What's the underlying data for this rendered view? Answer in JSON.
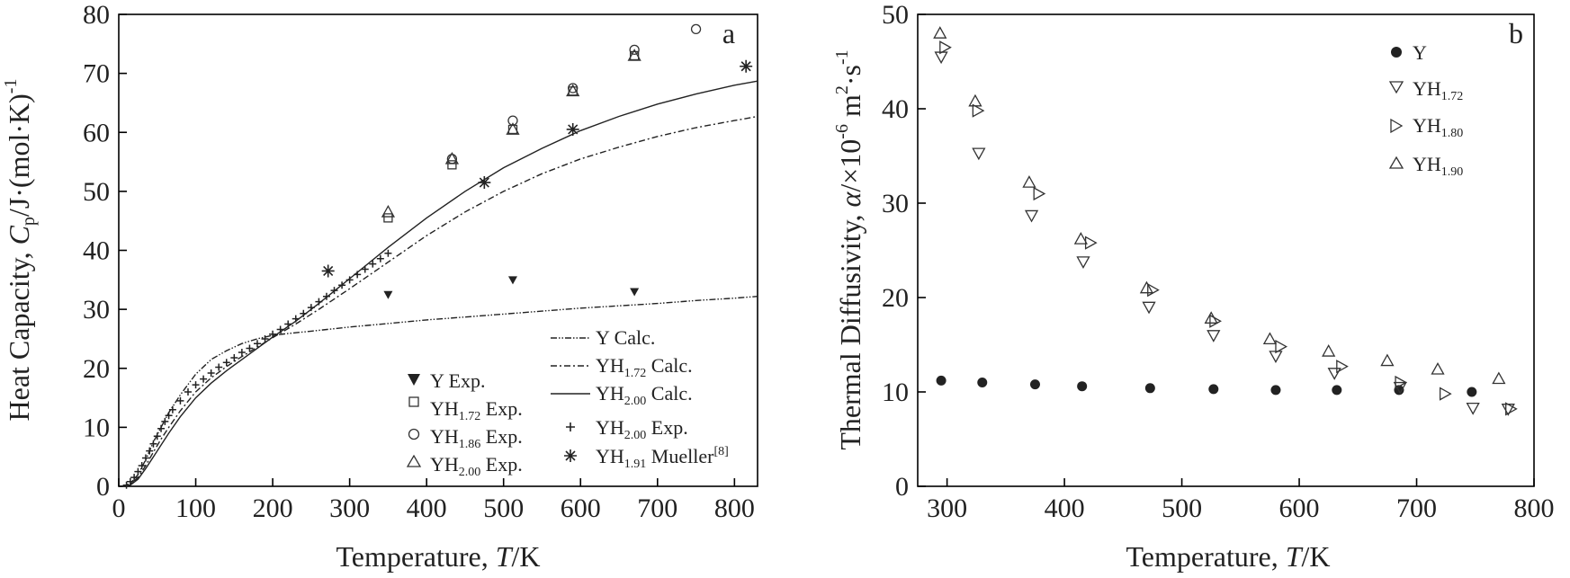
{
  "chart_data": [
    {
      "type": "scatter",
      "panel_label": "a",
      "xlabel_prefix": "Temperature, ",
      "xlabel_var": "T",
      "xlabel_suffix": "/K",
      "ylabel_prefix": "Heat Capacity, ",
      "ylabel_var": "C",
      "ylabel_var_sub": "p",
      "ylabel_suffix": "/J·(mol·K)",
      "ylabel_sup": "-1",
      "xlim": [
        0,
        830
      ],
      "ylim": [
        0,
        80
      ],
      "xticks": [
        0,
        100,
        200,
        300,
        400,
        500,
        600,
        700,
        800
      ],
      "yticks": [
        0,
        10,
        20,
        30,
        40,
        50,
        60,
        70,
        80
      ],
      "curves": [
        {
          "name": "Y Calc.",
          "label": "Y Calc.",
          "style": "dash-dot-dot",
          "x": [
            5,
            15,
            25,
            35,
            45,
            55,
            65,
            80,
            100,
            120,
            140,
            160,
            180,
            200,
            220,
            250,
            300,
            350,
            400,
            450,
            500,
            550,
            600,
            650,
            700,
            750,
            800,
            830
          ],
          "y": [
            0,
            0.5,
            2,
            4.5,
            7.5,
            10,
            12.5,
            15.5,
            19,
            21.5,
            23,
            24.2,
            25,
            25.6,
            25.9,
            26.3,
            27,
            27.6,
            28.2,
            28.7,
            29.2,
            29.7,
            30.2,
            30.6,
            31.0,
            31.5,
            31.9,
            32.2
          ]
        },
        {
          "name": "YH1.72 Calc.",
          "label_main": "YH",
          "label_sub": "1.72",
          "label_tail": " Calc.",
          "style": "dash-dot",
          "x": [
            5,
            15,
            25,
            35,
            45,
            55,
            65,
            80,
            100,
            120,
            140,
            160,
            180,
            200,
            230,
            260,
            300,
            350,
            400,
            450,
            500,
            550,
            600,
            650,
            700,
            750,
            800,
            830
          ],
          "y": [
            0,
            0.3,
            1.5,
            3.5,
            5.8,
            8,
            10,
            12.8,
            16,
            18.4,
            20.3,
            22,
            23.6,
            25.2,
            27.5,
            30,
            33.5,
            38,
            42.5,
            46.5,
            50,
            53,
            55.5,
            57.5,
            59.3,
            60.8,
            62,
            62.7
          ]
        },
        {
          "name": "YH2.00 Calc.",
          "label_main": "YH",
          "label_sub": "2.00",
          "label_tail": " Calc.",
          "style": "solid",
          "x": [
            5,
            15,
            25,
            35,
            45,
            55,
            65,
            80,
            100,
            120,
            140,
            160,
            180,
            200,
            230,
            260,
            300,
            350,
            400,
            450,
            500,
            550,
            600,
            650,
            700,
            750,
            800,
            830
          ],
          "y": [
            0,
            0.2,
            1.2,
            3,
            5,
            7,
            9,
            11.8,
            15,
            17.5,
            19.6,
            21.5,
            23.4,
            25.3,
            28,
            31,
            35.2,
            40.5,
            45.5,
            50,
            54,
            57.3,
            60.3,
            62.7,
            64.8,
            66.5,
            68,
            68.7
          ]
        }
      ],
      "markers": [
        {
          "name": "Y Exp.",
          "label": "Y Exp.",
          "marker": "filled-triangle-down",
          "x": [
            350,
            512,
            670
          ],
          "y": [
            32.5,
            35,
            33
          ]
        },
        {
          "name": "YH1.72 Exp.",
          "label_main": "YH",
          "label_sub": "1.72",
          "label_tail": " Exp.",
          "marker": "square",
          "x": [
            350,
            433,
            512,
            590,
            670
          ],
          "y": [
            45.5,
            54.5,
            60.5,
            67,
            73
          ]
        },
        {
          "name": "YH1.86 Exp.",
          "label_main": "YH",
          "label_sub": "1.86",
          "label_tail": " Exp.",
          "marker": "circle",
          "x": [
            433,
            512,
            590,
            670,
            750
          ],
          "y": [
            55.5,
            62,
            67.5,
            74,
            77.5
          ]
        },
        {
          "name": "YH2.00 Exp.",
          "label_main": "YH",
          "label_sub": "2.00",
          "label_tail": " Exp.",
          "marker": "triangle-up",
          "x": [
            350,
            433,
            512,
            590,
            670
          ],
          "y": [
            46.5,
            55.5,
            60.5,
            67,
            73
          ]
        },
        {
          "name": "YH2.00 Exp. (+)",
          "label_main": "YH",
          "label_sub": "2.00",
          "label_tail": " Exp.",
          "marker": "plus",
          "x": [
            10,
            15,
            20,
            25,
            30,
            35,
            40,
            45,
            50,
            55,
            60,
            65,
            70,
            80,
            90,
            100,
            110,
            120,
            130,
            140,
            150,
            160,
            170,
            180,
            190,
            200,
            210,
            220,
            230,
            240,
            250,
            260,
            270,
            280,
            290,
            300,
            310,
            320,
            330,
            340,
            350
          ],
          "y": [
            0.2,
            0.8,
            1.5,
            2.5,
            3.5,
            4.8,
            6,
            7.2,
            8.5,
            9.8,
            11,
            12,
            13,
            14.5,
            16,
            17.2,
            18.2,
            19.2,
            20.2,
            21,
            21.8,
            22.7,
            23.4,
            24.2,
            25,
            25.8,
            26.6,
            27.5,
            28.4,
            29.3,
            30.3,
            31.3,
            32.2,
            33.2,
            34.1,
            35,
            35.9,
            36.8,
            37.7,
            38.6,
            39.5
          ]
        },
        {
          "name": "YH1.91 Mueller[8]",
          "label_main": "YH",
          "label_sub": "1.91",
          "label_tail": " Mueller",
          "label_sup": "[8]",
          "marker": "asterisk",
          "x": [
            272,
            475,
            590,
            815
          ],
          "y": [
            36.5,
            51.5,
            60.5,
            71.2
          ]
        }
      ],
      "legend_position": "lower-right"
    },
    {
      "type": "scatter",
      "panel_label": "b",
      "xlabel_prefix": "Temperature, ",
      "xlabel_var": "T",
      "xlabel_suffix": "/K",
      "ylabel_prefix": "Thermal Diffusivity, ",
      "ylabel_var": "α",
      "ylabel_mid": "/×10",
      "ylabel_sup1": "-6",
      "ylabel_unit1": " m",
      "ylabel_sup2": "2",
      "ylabel_unit2": "·s",
      "ylabel_sup3": "-1",
      "xlim": [
        275,
        800
      ],
      "ylim": [
        0,
        50
      ],
      "xticks": [
        300,
        400,
        500,
        600,
        700,
        800
      ],
      "yticks": [
        0,
        10,
        20,
        30,
        40,
        50
      ],
      "markers": [
        {
          "name": "Y",
          "label": "Y",
          "marker": "filled-circle",
          "x": [
            295,
            330,
            375,
            415,
            473,
            527,
            580,
            632,
            685,
            747
          ],
          "y": [
            11.2,
            11,
            10.8,
            10.6,
            10.4,
            10.3,
            10.2,
            10.2,
            10.2,
            10
          ]
        },
        {
          "name": "YH1.72",
          "label_main": "YH",
          "label_sub": "1.72",
          "marker": "triangle-down",
          "x": [
            295,
            327,
            372,
            416,
            472,
            527,
            580,
            630,
            686,
            748,
            778
          ],
          "y": [
            45.5,
            35.3,
            28.7,
            23.8,
            19,
            16,
            13.8,
            12,
            10.5,
            8.3,
            8.2
          ]
        },
        {
          "name": "YH1.80",
          "label_main": "YH",
          "label_sub": "1.80",
          "marker": "triangle-right",
          "x": [
            298,
            326,
            378,
            422,
            475,
            528,
            584,
            636,
            686,
            724,
            780
          ],
          "y": [
            46.5,
            39.8,
            31,
            25.8,
            20.8,
            17.5,
            14.8,
            12.7,
            11,
            9.8,
            8.2
          ]
        },
        {
          "name": "YH1.90",
          "label_main": "YH",
          "label_sub": "1.90",
          "marker": "triangle-up",
          "x": [
            294,
            324,
            370,
            414,
            470,
            525,
            575,
            625,
            675,
            718,
            770
          ],
          "y": [
            48,
            40.8,
            32.2,
            26.2,
            21,
            17.8,
            15.6,
            14.3,
            13.3,
            12.4,
            11.4
          ]
        }
      ],
      "legend_position": "top-right"
    }
  ]
}
